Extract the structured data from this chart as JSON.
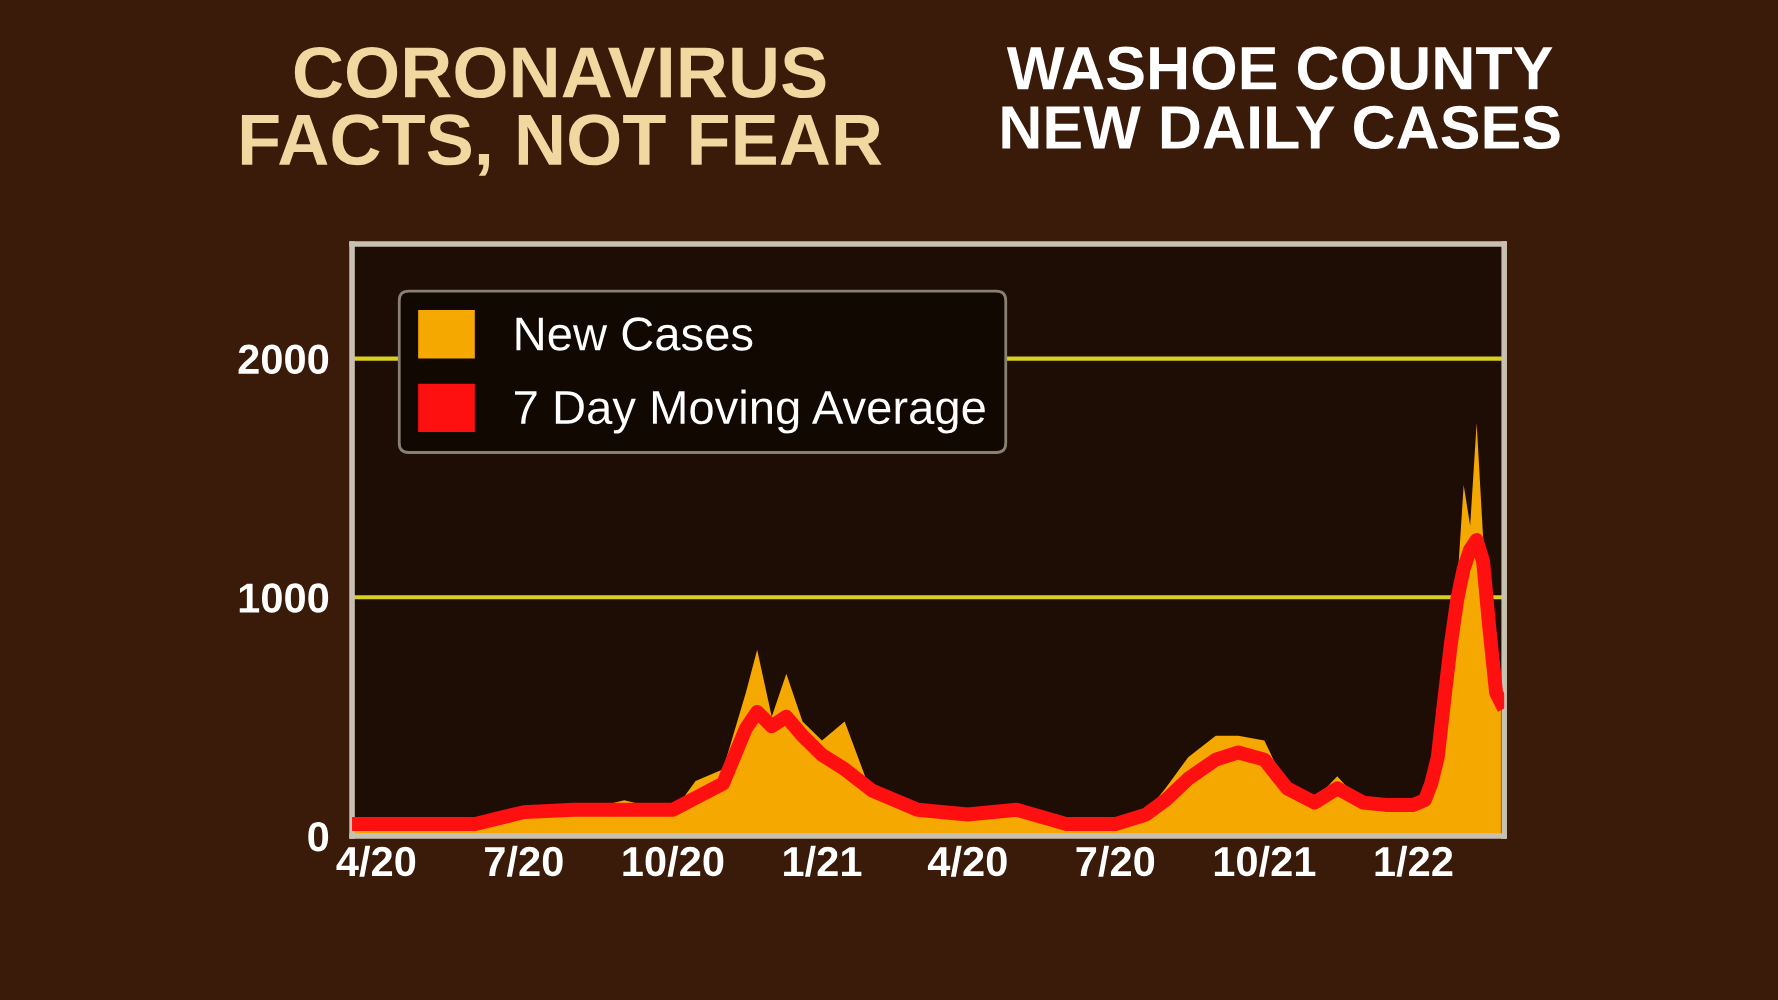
{
  "chart_data": {
    "type": "area",
    "title": "CORONAVIRUS\nFACTS, NOT FEAR",
    "subtitle": "WASHOE COUNTY\nNEW DAILY CASES",
    "x": [
      "2020-03-17",
      "2020-04-01",
      "2020-05-01",
      "2020-06-01",
      "2020-07-01",
      "2020-08-01",
      "2020-09-01",
      "2020-10-01",
      "2020-10-15",
      "2020-11-01",
      "2020-11-15",
      "2020-11-22",
      "2020-12-01",
      "2020-12-10",
      "2020-12-20",
      "2021-01-01",
      "2021-01-15",
      "2021-02-01",
      "2021-03-01",
      "2021-04-01",
      "2021-05-01",
      "2021-06-01",
      "2021-07-01",
      "2021-07-20",
      "2021-08-01",
      "2021-08-15",
      "2021-09-01",
      "2021-09-15",
      "2021-10-01",
      "2021-10-15",
      "2021-11-01",
      "2021-11-15",
      "2021-12-01",
      "2021-12-15",
      "2022-01-01",
      "2022-01-08",
      "2022-01-12",
      "2022-01-16",
      "2022-01-20",
      "2022-01-24",
      "2022-01-28",
      "2022-02-01",
      "2022-02-05",
      "2022-02-09",
      "2022-02-13",
      "2022-02-17",
      "2022-02-21",
      "2022-02-24"
    ],
    "series": [
      {
        "name": "New Cases",
        "color": "#f5a800",
        "values": [
          60,
          40,
          40,
          40,
          120,
          100,
          150,
          100,
          230,
          280,
          600,
          780,
          500,
          680,
          480,
          400,
          480,
          170,
          100,
          90,
          100,
          40,
          40,
          100,
          200,
          330,
          420,
          420,
          400,
          200,
          150,
          250,
          130,
          110,
          110,
          160,
          250,
          380,
          450,
          1000,
          1050,
          1470,
          1300,
          1730,
          1250,
          1000,
          800,
          600
        ]
      },
      {
        "name": "7 Day Moving Average",
        "type": "line",
        "color": "#ff1010",
        "values": [
          50,
          50,
          50,
          50,
          100,
          110,
          110,
          110,
          160,
          220,
          450,
          520,
          460,
          500,
          420,
          340,
          280,
          190,
          110,
          90,
          110,
          50,
          50,
          90,
          150,
          240,
          320,
          350,
          320,
          200,
          140,
          200,
          140,
          130,
          130,
          150,
          220,
          330,
          570,
          800,
          990,
          1120,
          1200,
          1240,
          1150,
          860,
          600,
          560
        ]
      }
    ],
    "xlim": [
      "2020-03-17",
      "2022-02-26"
    ],
    "xticks": [
      {
        "value": "2020-04-01",
        "label": "4/20"
      },
      {
        "value": "2020-07-01",
        "label": "7/20"
      },
      {
        "value": "2020-10-01",
        "label": "10/20"
      },
      {
        "value": "2021-01-01",
        "label": "1/21"
      },
      {
        "value": "2021-04-01",
        "label": "4/20"
      },
      {
        "value": "2021-07-01",
        "label": "7/20"
      },
      {
        "value": "2021-10-01",
        "label": "10/21"
      },
      {
        "value": "2022-01-01",
        "label": "1/22"
      }
    ],
    "ylim": [
      0,
      2480
    ],
    "yticks": [
      0,
      1000,
      2000
    ],
    "grid": "y",
    "legend": "top left"
  }
}
